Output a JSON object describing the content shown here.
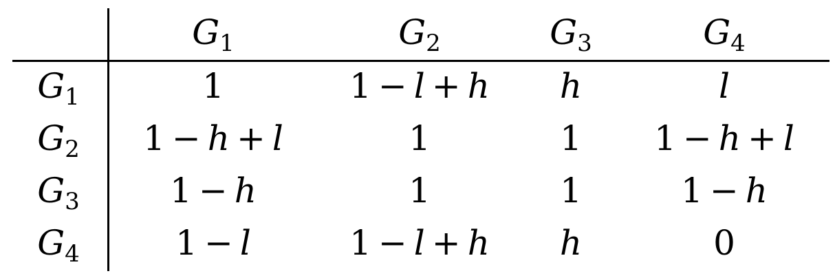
{
  "table": {
    "header": [
      {
        "sym": "",
        "sub": ""
      },
      {
        "sym": "G",
        "sub": "1"
      },
      {
        "sym": "G",
        "sub": "2"
      },
      {
        "sym": "G",
        "sub": "3"
      },
      {
        "sym": "G",
        "sub": "4"
      }
    ],
    "rows": [
      {
        "label": {
          "sym": "G",
          "sub": "1"
        },
        "cells": [
          "1",
          "1 − l + h",
          "h",
          "l"
        ]
      },
      {
        "label": {
          "sym": "G",
          "sub": "2"
        },
        "cells": [
          "1 − h + l",
          "1",
          "1",
          "1 − h + l"
        ]
      },
      {
        "label": {
          "sym": "G",
          "sub": "3"
        },
        "cells": [
          "1 − h",
          "1",
          "1",
          "1 − h"
        ]
      },
      {
        "label": {
          "sym": "G",
          "sub": "4"
        },
        "cells": [
          "1 − l",
          "1 − l + h",
          "h",
          "0"
        ]
      }
    ]
  }
}
